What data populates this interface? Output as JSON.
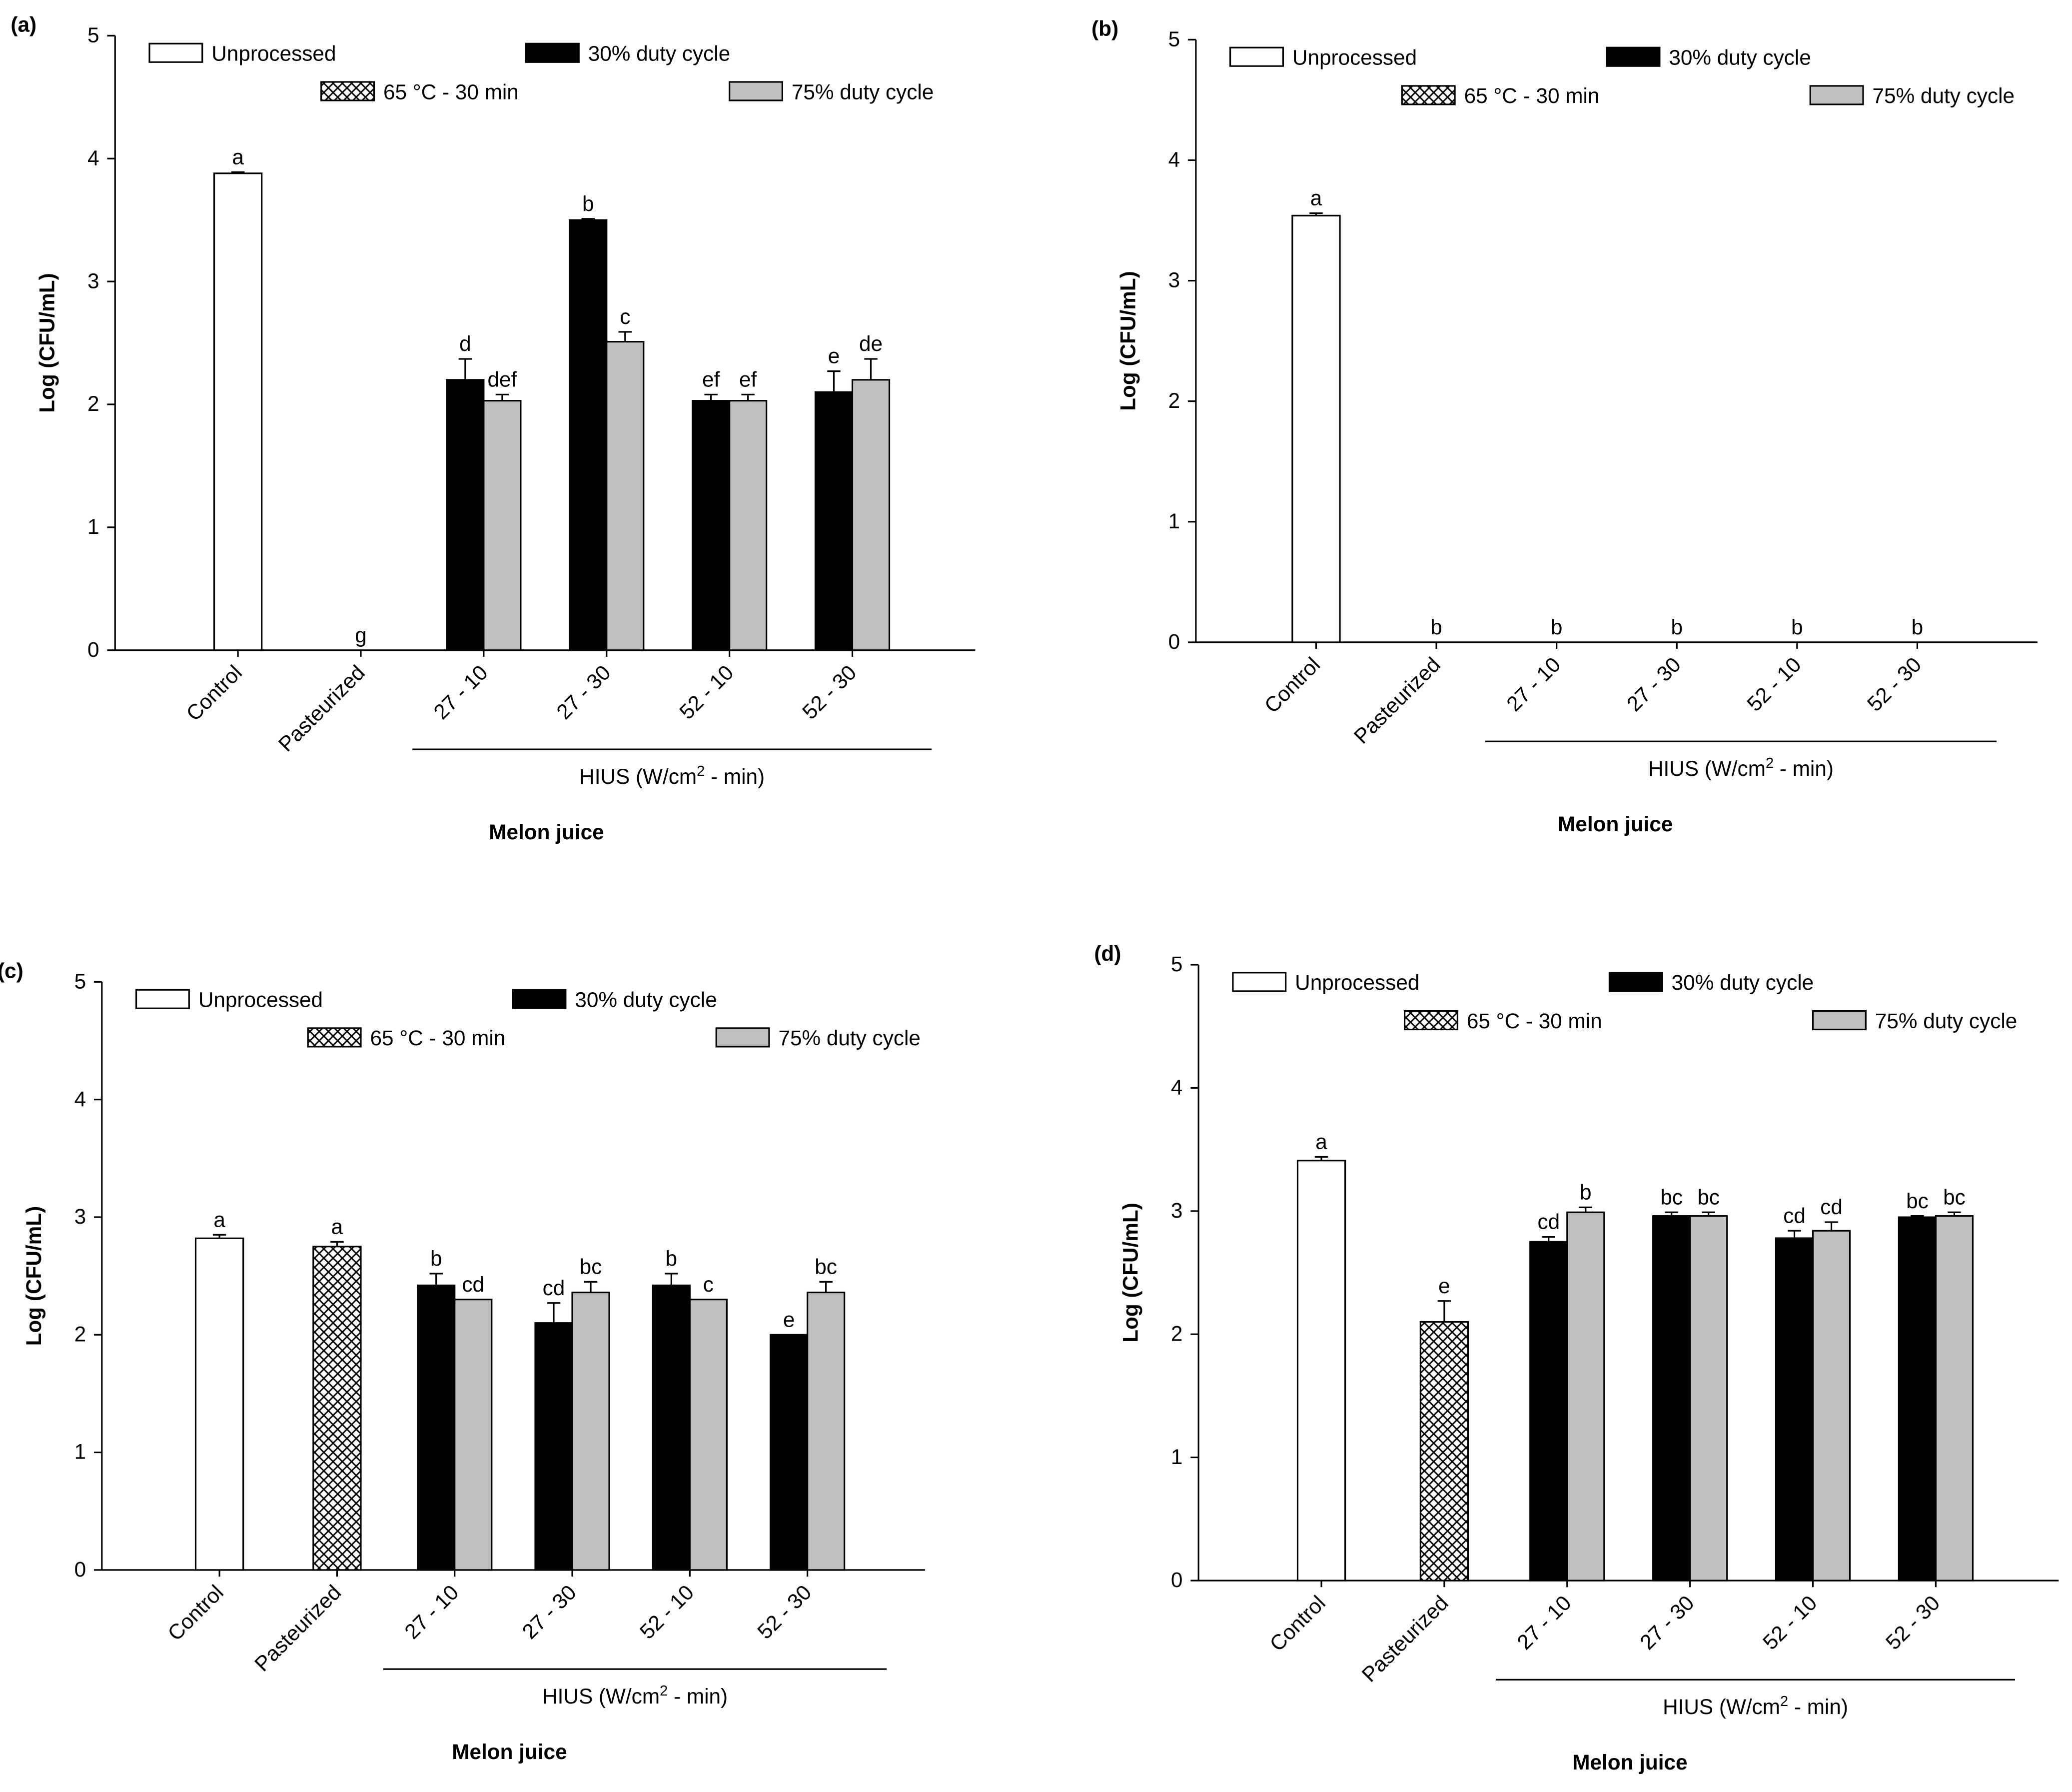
{
  "chart_data": [
    {
      "type": "bar",
      "panel": "(a)",
      "ylabel": "Log (CFU/mL)",
      "xlabel": "Melon juice",
      "group_label_parts": [
        "HIUS (W/cm",
        "2",
        " - min)"
      ],
      "group_span": [
        2,
        5
      ],
      "categories": [
        "Control",
        "Pasteurized",
        "27 - 10",
        "27 - 30",
        "52 - 10",
        "52 - 30"
      ],
      "ylim": [
        0,
        5
      ],
      "yticks": [
        0,
        1,
        2,
        3,
        4,
        5
      ],
      "series": [
        {
          "name": "Unprocessed",
          "color": "#ffffff",
          "values": [
            3.88,
            null,
            null,
            null,
            null,
            null
          ],
          "errors": [
            0.01,
            null,
            null,
            null,
            null,
            null
          ],
          "letters": [
            "a",
            null,
            null,
            null,
            null,
            null
          ]
        },
        {
          "name": "30% duty cycle",
          "color": "#000000",
          "values": [
            null,
            null,
            2.2,
            3.5,
            2.03,
            2.1
          ],
          "errors": [
            null,
            null,
            0.17,
            0.01,
            0.05,
            0.17
          ],
          "letters": [
            null,
            null,
            "d",
            "b",
            "ef",
            "e"
          ]
        },
        {
          "name": "65 °C - 30 min",
          "color": "#000000",
          "pattern": "crosshatch",
          "values": [
            null,
            0,
            null,
            null,
            null,
            null
          ],
          "errors": [
            null,
            0,
            null,
            null,
            null,
            null
          ],
          "letters": [
            null,
            "g",
            null,
            null,
            null,
            null
          ]
        },
        {
          "name": "75% duty cycle",
          "color": "#c0c0c0",
          "values": [
            null,
            null,
            2.03,
            2.51,
            2.03,
            2.2
          ],
          "errors": [
            null,
            null,
            0.05,
            0.08,
            0.05,
            0.17
          ],
          "letters": [
            null,
            null,
            "def",
            "c",
            "ef",
            "de"
          ]
        }
      ]
    },
    {
      "type": "bar",
      "panel": "(b)",
      "ylabel": "Log (CFU/mL)",
      "xlabel": "Melon juice",
      "group_label_parts": [
        "HIUS (W/cm",
        "2",
        " - min)"
      ],
      "group_span": [
        2,
        5
      ],
      "categories": [
        "Control",
        "Pasteurized",
        "27 - 10",
        "27 - 30",
        "52 - 10",
        "52 - 30"
      ],
      "ylim": [
        0,
        5
      ],
      "yticks": [
        0,
        1,
        2,
        3,
        4,
        5
      ],
      "category_letters": [
        null,
        null,
        "b",
        "b",
        "b",
        "b"
      ],
      "series": [
        {
          "name": "Unprocessed",
          "color": "#ffffff",
          "values": [
            3.54,
            null,
            null,
            null,
            null,
            null
          ],
          "errors": [
            0.02,
            null,
            null,
            null,
            null,
            null
          ],
          "letters": [
            "a",
            null,
            null,
            null,
            null,
            null
          ]
        },
        {
          "name": "30% duty cycle",
          "color": "#000000",
          "values": [
            null,
            null,
            0,
            0,
            0,
            0
          ],
          "errors": [
            null,
            null,
            0,
            0,
            0,
            0
          ],
          "letters": [
            null,
            null,
            null,
            null,
            null,
            null
          ]
        },
        {
          "name": "65 °C - 30 min",
          "color": "#000000",
          "pattern": "crosshatch",
          "values": [
            null,
            0,
            null,
            null,
            null,
            null
          ],
          "errors": [
            null,
            0,
            null,
            null,
            null,
            null
          ],
          "letters": [
            null,
            "b",
            null,
            null,
            null,
            null
          ]
        },
        {
          "name": "75% duty cycle",
          "color": "#c0c0c0",
          "values": [
            null,
            null,
            0,
            0,
            0,
            0
          ],
          "errors": [
            null,
            null,
            0,
            0,
            0,
            0
          ],
          "letters": [
            null,
            null,
            null,
            null,
            null,
            null
          ]
        }
      ]
    },
    {
      "type": "bar",
      "panel": "(c)",
      "ylabel": "Log (CFU/mL)",
      "xlabel": "Melon juice",
      "group_label_parts": [
        "HIUS (W/cm",
        "2",
        " - min)"
      ],
      "group_span": [
        2,
        5
      ],
      "categories": [
        "Control",
        "Pasteurized",
        "27 - 10",
        "27 - 30",
        "52 - 10",
        "52 - 30"
      ],
      "ylim": [
        0,
        5
      ],
      "yticks": [
        0,
        1,
        2,
        3,
        4,
        5
      ],
      "series": [
        {
          "name": "Unprocessed",
          "color": "#ffffff",
          "values": [
            2.82,
            null,
            null,
            null,
            null,
            null
          ],
          "errors": [
            0.03,
            null,
            null,
            null,
            null,
            null
          ],
          "letters": [
            "a",
            null,
            null,
            null,
            null,
            null
          ]
        },
        {
          "name": "30% duty cycle",
          "color": "#000000",
          "values": [
            null,
            null,
            2.42,
            2.1,
            2.42,
            2.0
          ],
          "errors": [
            null,
            null,
            0.1,
            0.17,
            0.1,
            0
          ],
          "letters": [
            null,
            null,
            "b",
            "cd",
            "b",
            "e"
          ]
        },
        {
          "name": "65 °C - 30 min",
          "color": "#000000",
          "pattern": "crosshatch",
          "values": [
            null,
            2.75,
            null,
            null,
            null,
            null
          ],
          "errors": [
            null,
            0.04,
            null,
            null,
            null,
            null
          ],
          "letters": [
            null,
            "a",
            null,
            null,
            null,
            null
          ]
        },
        {
          "name": "75% duty cycle",
          "color": "#c0c0c0",
          "values": [
            null,
            null,
            2.3,
            2.36,
            2.3,
            2.36
          ],
          "errors": [
            null,
            null,
            0,
            0.09,
            0,
            0.09
          ],
          "letters": [
            null,
            null,
            "cd",
            "bc",
            "c",
            "bc"
          ]
        }
      ]
    },
    {
      "type": "bar",
      "panel": "(d)",
      "ylabel": "Log (CFU/mL)",
      "xlabel": "Melon juice",
      "group_label_parts": [
        "HIUS (W/cm",
        "2",
        " - min)"
      ],
      "group_span": [
        2,
        5
      ],
      "categories": [
        "Control",
        "Pasteurized",
        "27 - 10",
        "27 - 30",
        "52 - 10",
        "52 - 30"
      ],
      "ylim": [
        0,
        5
      ],
      "yticks": [
        0,
        1,
        2,
        3,
        4,
        5
      ],
      "series": [
        {
          "name": "Unprocessed",
          "color": "#ffffff",
          "values": [
            3.41,
            null,
            null,
            null,
            null,
            null
          ],
          "errors": [
            0.03,
            null,
            null,
            null,
            null,
            null
          ],
          "letters": [
            "a",
            null,
            null,
            null,
            null,
            null
          ]
        },
        {
          "name": "30% duty cycle",
          "color": "#000000",
          "values": [
            null,
            null,
            2.75,
            2.96,
            2.78,
            2.95
          ],
          "errors": [
            null,
            null,
            0.04,
            0.03,
            0.06,
            0.01
          ],
          "letters": [
            null,
            null,
            "cd",
            "bc",
            "cd",
            "bc"
          ]
        },
        {
          "name": "65 °C - 30 min",
          "color": "#000000",
          "pattern": "crosshatch",
          "values": [
            null,
            2.1,
            null,
            null,
            null,
            null
          ],
          "errors": [
            null,
            0.17,
            null,
            null,
            null,
            null
          ],
          "letters": [
            null,
            "e",
            null,
            null,
            null,
            null
          ]
        },
        {
          "name": "75% duty cycle",
          "color": "#c0c0c0",
          "values": [
            null,
            null,
            2.99,
            2.96,
            2.84,
            2.96
          ],
          "errors": [
            null,
            null,
            0.04,
            0.03,
            0.07,
            0.03
          ],
          "letters": [
            null,
            null,
            "b",
            "bc",
            "cd",
            "bc"
          ]
        }
      ]
    }
  ]
}
